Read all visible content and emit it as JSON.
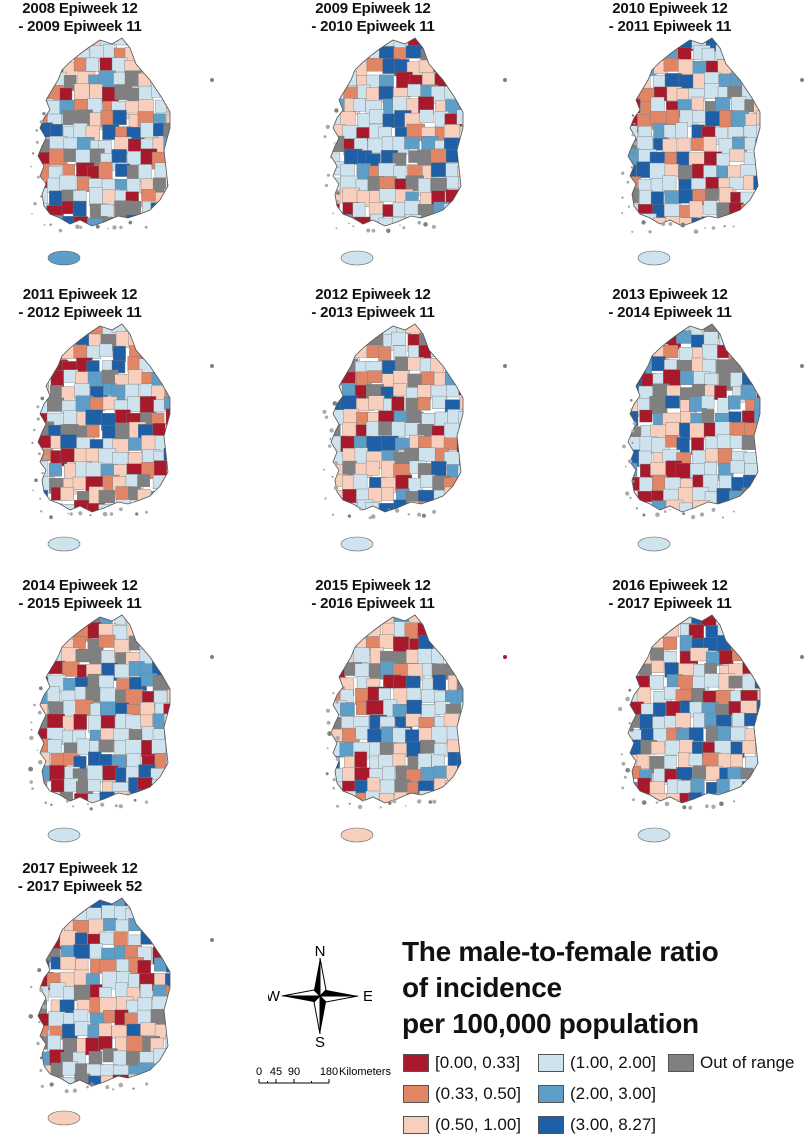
{
  "panels": [
    {
      "line1": "2008 Epiweek 12",
      "line2": "- 2009 Epiweek 11"
    },
    {
      "line1": "2009 Epiweek 12",
      "line2": "- 2010 Epiweek 11"
    },
    {
      "line1": "2010 Epiweek 12",
      "line2": "- 2011 Epiweek 11"
    },
    {
      "line1": "2011 Epiweek 12",
      "line2": "- 2012 Epiweek 11"
    },
    {
      "line1": "2012 Epiweek 12",
      "line2": "- 2013 Epiweek 11"
    },
    {
      "line1": "2013 Epiweek 12",
      "line2": "- 2014 Epiweek 11"
    },
    {
      "line1": "2014 Epiweek 12",
      "line2": "- 2015 Epiweek 11"
    },
    {
      "line1": "2015 Epiweek 12",
      "line2": "- 2016 Epiweek 11"
    },
    {
      "line1": "2016 Epiweek 12",
      "line2": "- 2017 Epiweek 11"
    },
    {
      "line1": "2017 Epiweek 12",
      "line2": "- 2017 Epiweek 52"
    }
  ],
  "legend": {
    "title_line1": "The male-to-female ratio",
    "title_line2": "of incidence",
    "title_line3": "per 100,000 population",
    "items": [
      {
        "label": "[0.00, 0.33]",
        "color": "#a8192b"
      },
      {
        "label": "(0.33, 0.50]",
        "color": "#e08566"
      },
      {
        "label": "(0.50, 1.00]",
        "color": "#f8cfbd"
      },
      {
        "label": "(1.00, 2.00]",
        "color": "#cfe3ef"
      },
      {
        "label": "(2.00, 3.00]",
        "color": "#5d9ec9"
      },
      {
        "label": "(3.00, 8.27]",
        "color": "#1f5fa5"
      },
      {
        "label": "Out of range",
        "color": "#808080"
      }
    ]
  },
  "compass": {
    "n": "N",
    "s": "S",
    "e": "E",
    "w": "W"
  },
  "scale": {
    "t0": "0",
    "t1": "45",
    "t2": "90",
    "t3": "180",
    "unit": "Kilometers"
  }
}
